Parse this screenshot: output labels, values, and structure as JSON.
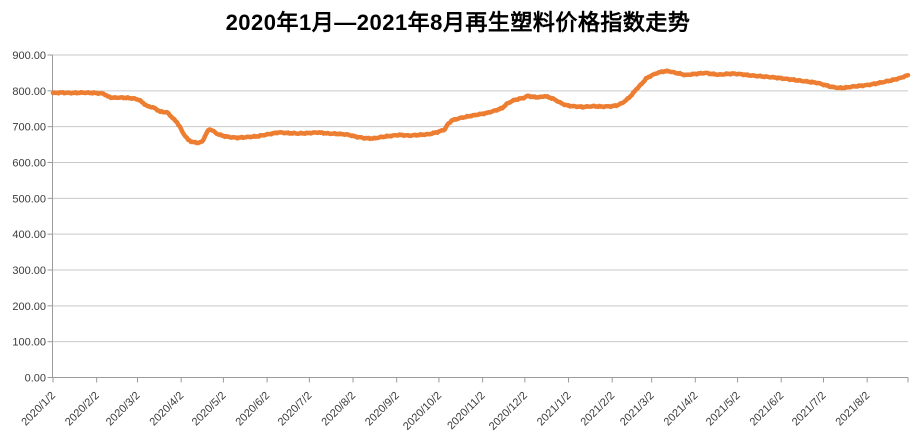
{
  "title": "2020年1月—2021年8月再生塑料价格指数走势",
  "colors": {
    "background": "#FFFFFF",
    "line": "#ED7D31",
    "gridline": "#C9C9C9",
    "axis": "#9B9B9B",
    "tick_label": "#3B3B3B",
    "title": "#000000"
  },
  "chart_data": {
    "type": "line",
    "title": "2020年1月—2021年8月再生塑料价格指数走势",
    "xlabel": "",
    "ylabel": "",
    "legend": "none",
    "grid": "horizontal",
    "y_axis": {
      "min": 0,
      "max": 900,
      "step": 100,
      "tick_labels": [
        "0.00",
        "100.00",
        "200.00",
        "300.00",
        "400.00",
        "500.00",
        "600.00",
        "700.00",
        "800.00",
        "900.00"
      ]
    },
    "x_axis": {
      "start": "2020/1/2",
      "end": "2021/8/31",
      "tick_labels": [
        "2020/1/2",
        "2020/2/2",
        "2020/3/2",
        "2020/4/2",
        "2020/5/2",
        "2020/6/2",
        "2020/7/2",
        "2020/8/2",
        "2020/9/2",
        "2020/10/2",
        "2020/11/2",
        "2020/12/2",
        "2021/1/2",
        "2021/2/2",
        "2021/3/2",
        "2021/4/2",
        "2021/5/2",
        "2021/6/2",
        "2021/7/2",
        "2021/8/2"
      ]
    },
    "series": [
      {
        "name": "再生塑料价格指数",
        "color": "#ED7D31",
        "points": [
          [
            "2020/1/2",
            794
          ],
          [
            "2020/1/8",
            795
          ],
          [
            "2020/1/15",
            794
          ],
          [
            "2020/1/23",
            795
          ],
          [
            "2020/2/1",
            794
          ],
          [
            "2020/2/7",
            792
          ],
          [
            "2020/2/10",
            784
          ],
          [
            "2020/2/13",
            781
          ],
          [
            "2020/2/21",
            781
          ],
          [
            "2020/2/28",
            779
          ],
          [
            "2020/3/3",
            775
          ],
          [
            "2020/3/6",
            766
          ],
          [
            "2020/3/9",
            757
          ],
          [
            "2020/3/13",
            754
          ],
          [
            "2020/3/16",
            747
          ],
          [
            "2020/3/18",
            742
          ],
          [
            "2020/3/23",
            740
          ],
          [
            "2020/3/26",
            728
          ],
          [
            "2020/3/30",
            712
          ],
          [
            "2020/4/1",
            700
          ],
          [
            "2020/4/3",
            684
          ],
          [
            "2020/4/7",
            663
          ],
          [
            "2020/4/10",
            657
          ],
          [
            "2020/4/14",
            655
          ],
          [
            "2020/4/17",
            658
          ],
          [
            "2020/4/20",
            682
          ],
          [
            "2020/4/22",
            693
          ],
          [
            "2020/4/24",
            690
          ],
          [
            "2020/4/27",
            681
          ],
          [
            "2020/5/1",
            675
          ],
          [
            "2020/5/6",
            671
          ],
          [
            "2020/5/12",
            669
          ],
          [
            "2020/5/19",
            671
          ],
          [
            "2020/5/26",
            673
          ],
          [
            "2020/6/3",
            679
          ],
          [
            "2020/6/10",
            684
          ],
          [
            "2020/6/17",
            682
          ],
          [
            "2020/6/24",
            681
          ],
          [
            "2020/7/1",
            682
          ],
          [
            "2020/7/8",
            684
          ],
          [
            "2020/7/15",
            681
          ],
          [
            "2020/7/22",
            680
          ],
          [
            "2020/7/29",
            678
          ],
          [
            "2020/8/4",
            672
          ],
          [
            "2020/8/10",
            668
          ],
          [
            "2020/8/16",
            667
          ],
          [
            "2020/8/22",
            671
          ],
          [
            "2020/8/28",
            674
          ],
          [
            "2020/9/4",
            677
          ],
          [
            "2020/9/11",
            675
          ],
          [
            "2020/9/18",
            677
          ],
          [
            "2020/9/25",
            679
          ],
          [
            "2020/10/2",
            686
          ],
          [
            "2020/10/6",
            692
          ],
          [
            "2020/10/8",
            705
          ],
          [
            "2020/10/11",
            717
          ],
          [
            "2020/10/16",
            723
          ],
          [
            "2020/10/23",
            729
          ],
          [
            "2020/10/30",
            734
          ],
          [
            "2020/11/5",
            738
          ],
          [
            "2020/11/11",
            745
          ],
          [
            "2020/11/16",
            752
          ],
          [
            "2020/11/19",
            763
          ],
          [
            "2020/11/23",
            772
          ],
          [
            "2020/11/27",
            777
          ],
          [
            "2020/12/1",
            780
          ],
          [
            "2020/12/4",
            786
          ],
          [
            "2020/12/8",
            783
          ],
          [
            "2020/12/12",
            782
          ],
          [
            "2020/12/16",
            785
          ],
          [
            "2020/12/20",
            781
          ],
          [
            "2020/12/23",
            776
          ],
          [
            "2020/12/27",
            767
          ],
          [
            "2020/12/31",
            760
          ],
          [
            "2021/1/5",
            757
          ],
          [
            "2021/1/12",
            755
          ],
          [
            "2021/1/19",
            757
          ],
          [
            "2021/1/26",
            756
          ],
          [
            "2021/2/2",
            757
          ],
          [
            "2021/2/6",
            760
          ],
          [
            "2021/2/9",
            766
          ],
          [
            "2021/2/12",
            774
          ],
          [
            "2021/2/16",
            789
          ],
          [
            "2021/2/19",
            804
          ],
          [
            "2021/2/23",
            820
          ],
          [
            "2021/2/26",
            834
          ],
          [
            "2021/3/2",
            843
          ],
          [
            "2021/3/6",
            850
          ],
          [
            "2021/3/10",
            854
          ],
          [
            "2021/3/14",
            855
          ],
          [
            "2021/3/18",
            851
          ],
          [
            "2021/3/22",
            848
          ],
          [
            "2021/3/26",
            844
          ],
          [
            "2021/3/30",
            846
          ],
          [
            "2021/4/4",
            848
          ],
          [
            "2021/4/9",
            850
          ],
          [
            "2021/4/14",
            847
          ],
          [
            "2021/4/19",
            845
          ],
          [
            "2021/4/24",
            847
          ],
          [
            "2021/4/29",
            848
          ],
          [
            "2021/5/5",
            846
          ],
          [
            "2021/5/11",
            843
          ],
          [
            "2021/5/17",
            841
          ],
          [
            "2021/5/23",
            839
          ],
          [
            "2021/5/29",
            837
          ],
          [
            "2021/6/4",
            834
          ],
          [
            "2021/6/10",
            831
          ],
          [
            "2021/6/16",
            828
          ],
          [
            "2021/6/22",
            825
          ],
          [
            "2021/6/28",
            822
          ],
          [
            "2021/7/3",
            816
          ],
          [
            "2021/7/8",
            811
          ],
          [
            "2021/7/13",
            808
          ],
          [
            "2021/7/18",
            809
          ],
          [
            "2021/7/23",
            812
          ],
          [
            "2021/7/28",
            814
          ],
          [
            "2021/8/2",
            816
          ],
          [
            "2021/8/8",
            820
          ],
          [
            "2021/8/14",
            825
          ],
          [
            "2021/8/20",
            830
          ],
          [
            "2021/8/25",
            835
          ],
          [
            "2021/8/29",
            841
          ],
          [
            "2021/8/31",
            844
          ]
        ]
      }
    ]
  }
}
